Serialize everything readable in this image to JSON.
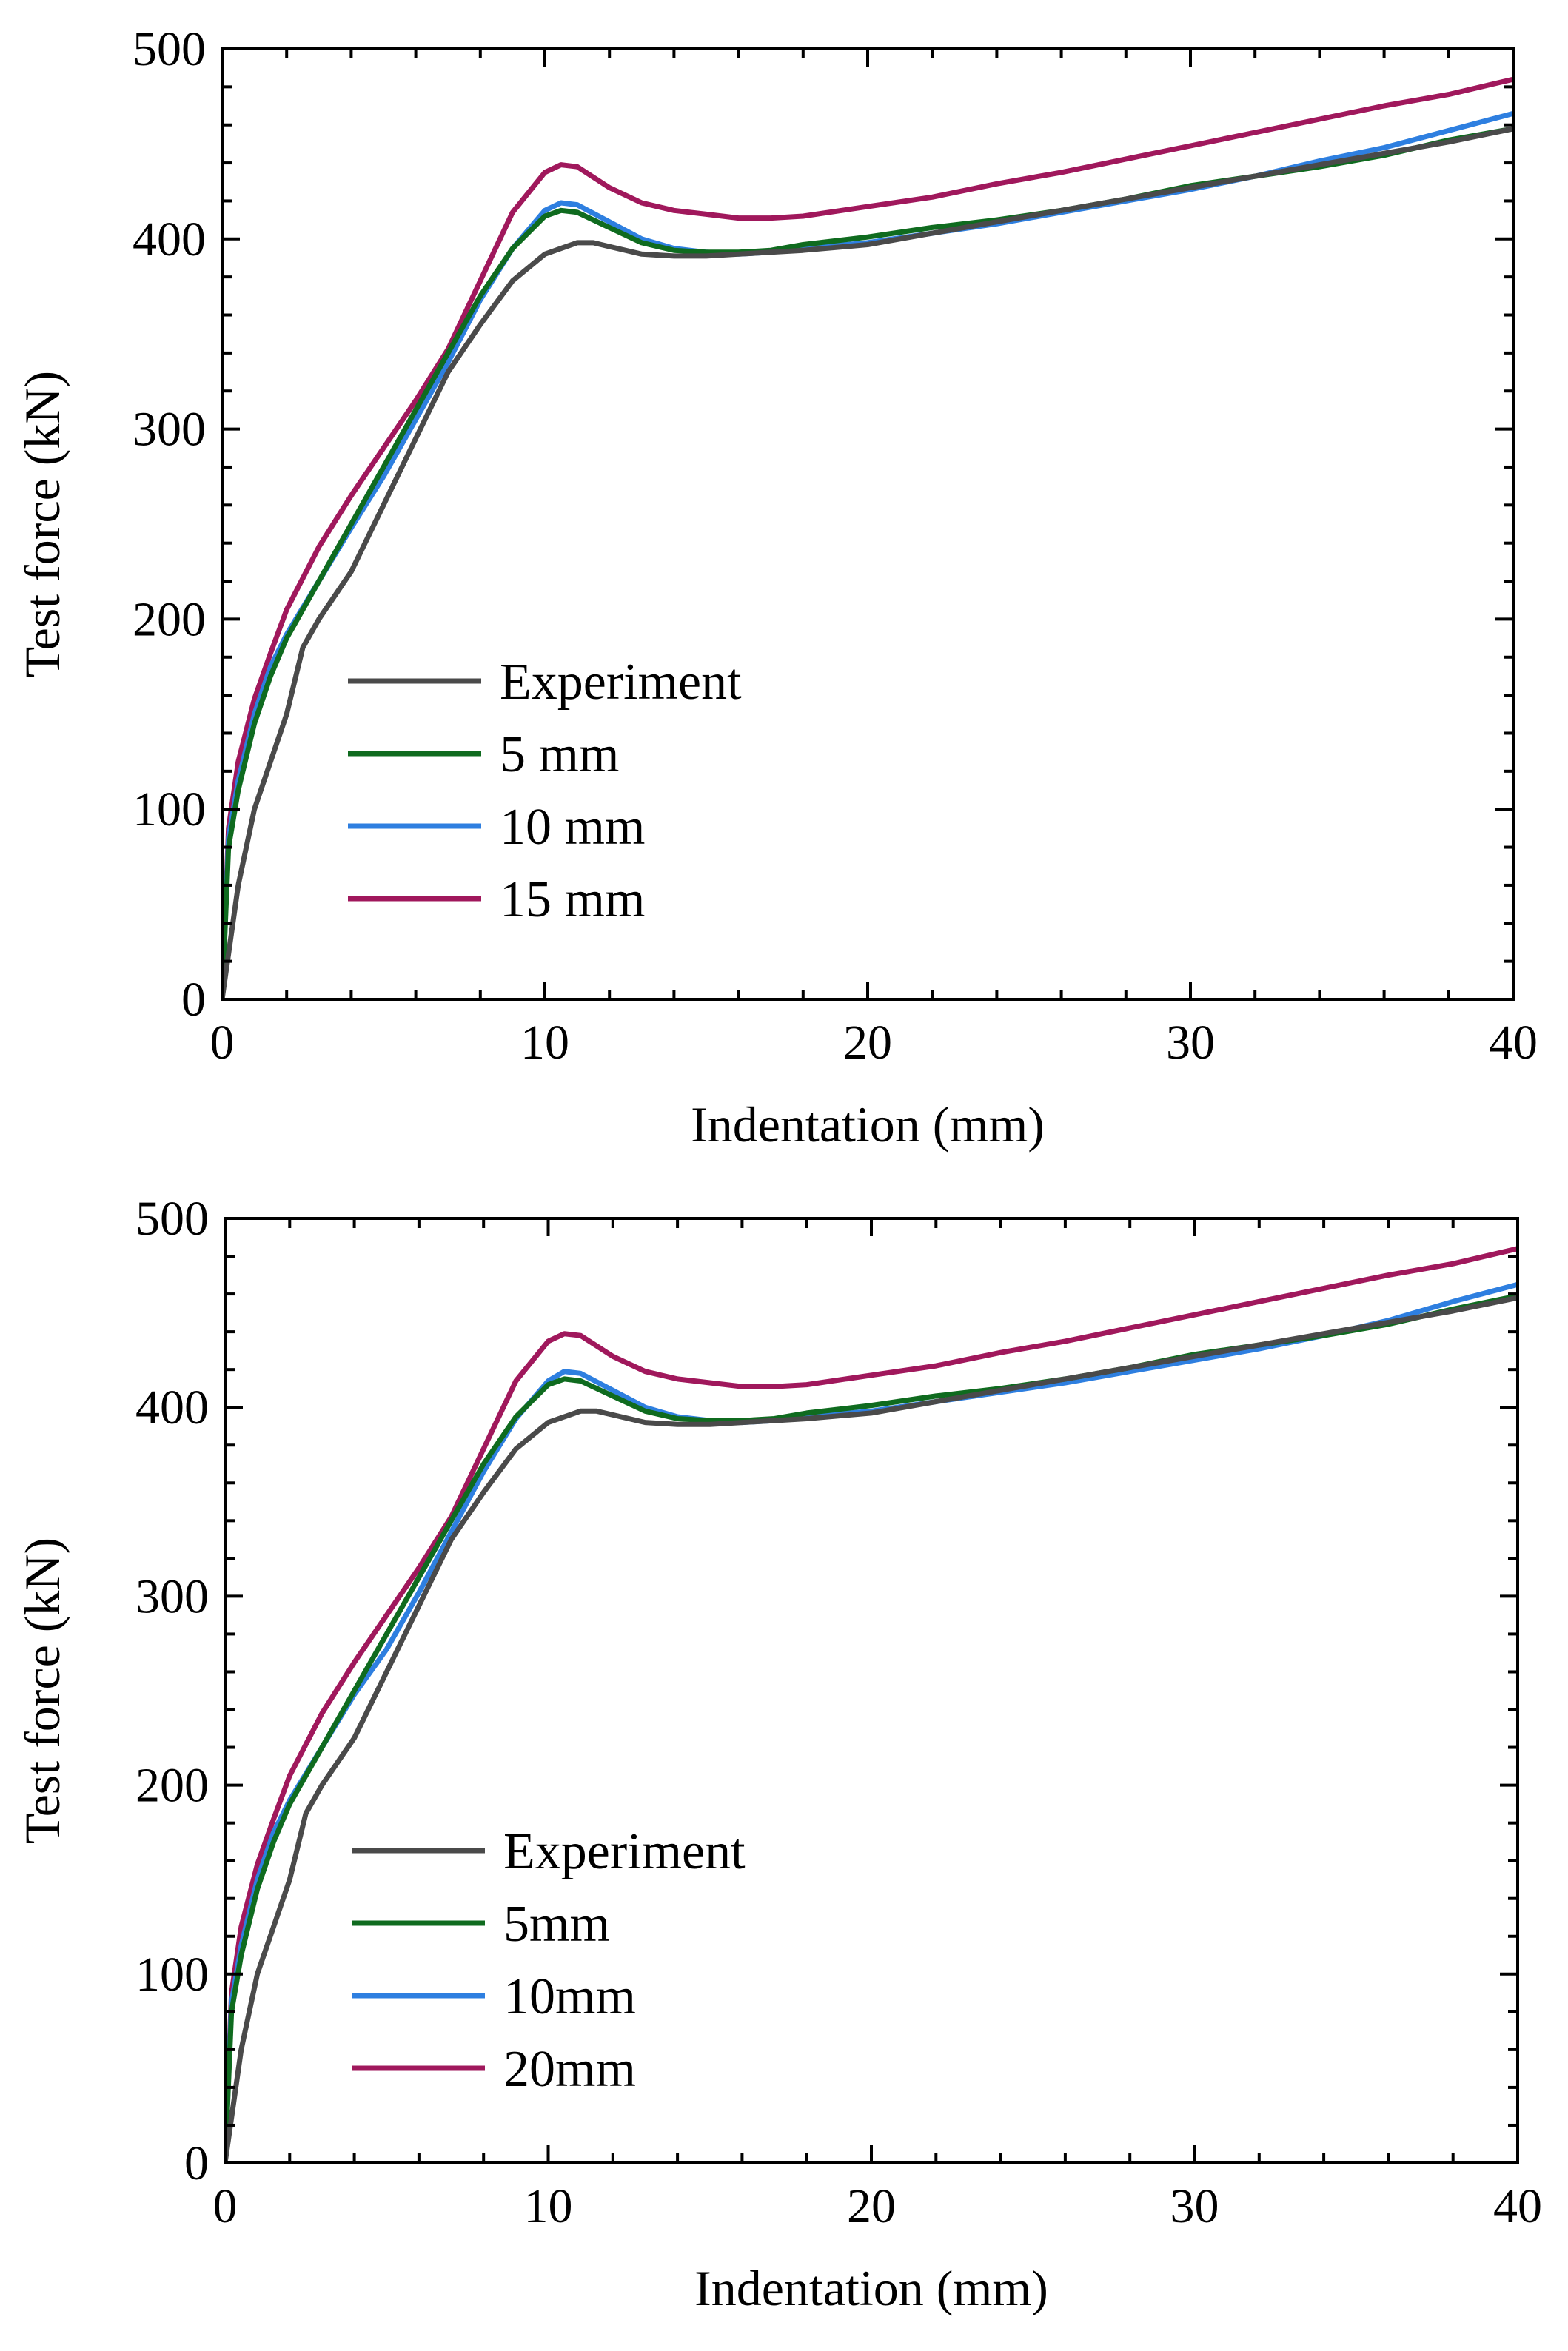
{
  "colors": {
    "experiment": "#4a4a4a",
    "mm5": "#0f6b1f",
    "mm10": "#2e7fe0",
    "mm15": "#a0185c",
    "mm20": "#a0185c"
  },
  "chart_data": [
    {
      "type": "line",
      "title": "",
      "xlabel": "Indentation (mm)",
      "ylabel": "Test force (kN)",
      "xlim": [
        0,
        40
      ],
      "ylim": [
        0,
        500
      ],
      "xticks": [
        "0",
        "10",
        "20",
        "30",
        "40"
      ],
      "yticks": [
        "0",
        "100",
        "200",
        "300",
        "400",
        "500"
      ],
      "legend_position": "lower-center-left",
      "series": [
        {
          "name": "Experiment",
          "color_key": "experiment",
          "x": [
            0,
            0.5,
            1,
            1.5,
            2,
            2.5,
            3,
            4,
            5,
            6,
            7,
            8,
            9,
            10,
            11,
            11.5,
            12,
            13,
            14,
            15,
            16,
            17,
            18,
            20,
            22,
            24,
            26,
            28,
            30,
            32,
            34,
            36,
            38,
            40
          ],
          "y": [
            0,
            60,
            100,
            125,
            150,
            185,
            200,
            225,
            260,
            295,
            330,
            355,
            378,
            392,
            398,
            398,
            396,
            392,
            391,
            391,
            392,
            393,
            394,
            397,
            403,
            409,
            415,
            421,
            427,
            433,
            439,
            445,
            451,
            458
          ]
        },
        {
          "name": "5 mm",
          "color_key": "mm5",
          "x": [
            0,
            0.2,
            0.5,
            1,
            1.5,
            2,
            3,
            4,
            5,
            6,
            7,
            8,
            9,
            10,
            10.5,
            11,
            12,
            13,
            14,
            15,
            16,
            17,
            18,
            20,
            22,
            24,
            26,
            28,
            30,
            32,
            34,
            36,
            38,
            40
          ],
          "y": [
            0,
            80,
            110,
            145,
            170,
            190,
            220,
            250,
            280,
            310,
            340,
            370,
            395,
            412,
            415,
            414,
            406,
            398,
            394,
            393,
            393,
            394,
            397,
            401,
            406,
            410,
            415,
            421,
            428,
            433,
            438,
            444,
            452,
            458
          ]
        },
        {
          "name": "10 mm",
          "color_key": "mm10",
          "x": [
            0,
            0.2,
            0.5,
            1,
            1.5,
            2,
            3,
            4,
            5,
            6,
            7,
            8,
            9,
            10,
            10.5,
            11,
            12,
            13,
            14,
            15,
            16,
            17,
            18,
            20,
            22,
            24,
            26,
            28,
            30,
            32,
            34,
            36,
            38,
            40
          ],
          "y": [
            0,
            85,
            115,
            150,
            175,
            192,
            220,
            248,
            275,
            305,
            335,
            368,
            395,
            415,
            419,
            418,
            409,
            400,
            395,
            393,
            392,
            393,
            395,
            398,
            403,
            408,
            414,
            420,
            426,
            433,
            441,
            448,
            457,
            466
          ]
        },
        {
          "name": "15 mm",
          "color_key": "mm15",
          "x": [
            0,
            0.2,
            0.5,
            1,
            1.5,
            2,
            3,
            4,
            5,
            6,
            7,
            8,
            9,
            10,
            10.5,
            11,
            12,
            13,
            14,
            15,
            16,
            17,
            18,
            20,
            22,
            24,
            26,
            28,
            30,
            32,
            34,
            36,
            38,
            40
          ],
          "y": [
            0,
            90,
            125,
            158,
            182,
            205,
            238,
            265,
            290,
            315,
            342,
            378,
            414,
            435,
            439,
            438,
            427,
            419,
            415,
            413,
            411,
            411,
            412,
            417,
            422,
            429,
            435,
            442,
            449,
            456,
            463,
            470,
            476,
            484
          ]
        }
      ]
    },
    {
      "type": "line",
      "title": "",
      "xlabel": "Indentation (mm)",
      "ylabel": "Test force (kN)",
      "xlim": [
        0,
        40
      ],
      "ylim": [
        0,
        500
      ],
      "xticks": [
        "0",
        "10",
        "20",
        "30",
        "40"
      ],
      "yticks": [
        "0",
        "100",
        "200",
        "300",
        "400",
        "500"
      ],
      "legend_position": "lower-center-left",
      "series": [
        {
          "name": "Experiment",
          "color_key": "experiment",
          "x": [
            0,
            0.5,
            1,
            1.5,
            2,
            2.5,
            3,
            4,
            5,
            6,
            7,
            8,
            9,
            10,
            11,
            11.5,
            12,
            13,
            14,
            15,
            16,
            17,
            18,
            20,
            22,
            24,
            26,
            28,
            30,
            32,
            34,
            36,
            38,
            40
          ],
          "y": [
            0,
            60,
            100,
            125,
            150,
            185,
            200,
            225,
            260,
            295,
            330,
            355,
            378,
            392,
            398,
            398,
            396,
            392,
            391,
            391,
            392,
            393,
            394,
            397,
            403,
            409,
            415,
            421,
            427,
            433,
            439,
            445,
            451,
            458
          ]
        },
        {
          "name": "5mm",
          "color_key": "mm5",
          "x": [
            0,
            0.2,
            0.5,
            1,
            1.5,
            2,
            3,
            4,
            5,
            6,
            7,
            8,
            9,
            10,
            10.5,
            11,
            12,
            13,
            14,
            15,
            16,
            17,
            18,
            20,
            22,
            24,
            26,
            28,
            30,
            32,
            34,
            36,
            38,
            40
          ],
          "y": [
            0,
            80,
            110,
            145,
            170,
            190,
            220,
            250,
            280,
            310,
            340,
            370,
            395,
            412,
            415,
            414,
            406,
            398,
            394,
            393,
            393,
            394,
            397,
            401,
            406,
            410,
            415,
            421,
            428,
            433,
            438,
            444,
            452,
            459
          ]
        },
        {
          "name": "10mm",
          "color_key": "mm10",
          "x": [
            0,
            0.2,
            0.5,
            1,
            1.5,
            2,
            3,
            4,
            5,
            6,
            7,
            8,
            9,
            10,
            10.5,
            11,
            12,
            13,
            14,
            15,
            16,
            17,
            18,
            20,
            22,
            24,
            26,
            28,
            30,
            32,
            34,
            36,
            38,
            40
          ],
          "y": [
            0,
            85,
            115,
            150,
            175,
            192,
            220,
            248,
            272,
            302,
            334,
            366,
            394,
            414,
            419,
            418,
            409,
            400,
            395,
            393,
            392,
            393,
            395,
            398,
            403,
            408,
            413,
            419,
            425,
            431,
            438,
            446,
            456,
            465
          ]
        },
        {
          "name": "20mm",
          "color_key": "mm20",
          "x": [
            0,
            0.2,
            0.5,
            1,
            1.5,
            2,
            3,
            4,
            5,
            6,
            7,
            8,
            9,
            10,
            10.5,
            11,
            12,
            13,
            14,
            15,
            16,
            17,
            18,
            20,
            22,
            24,
            26,
            28,
            30,
            32,
            34,
            36,
            38,
            40
          ],
          "y": [
            0,
            90,
            125,
            158,
            182,
            205,
            238,
            265,
            290,
            315,
            342,
            378,
            414,
            435,
            439,
            438,
            427,
            419,
            415,
            413,
            411,
            411,
            412,
            417,
            422,
            429,
            435,
            442,
            449,
            456,
            463,
            470,
            476,
            484
          ]
        }
      ]
    }
  ]
}
